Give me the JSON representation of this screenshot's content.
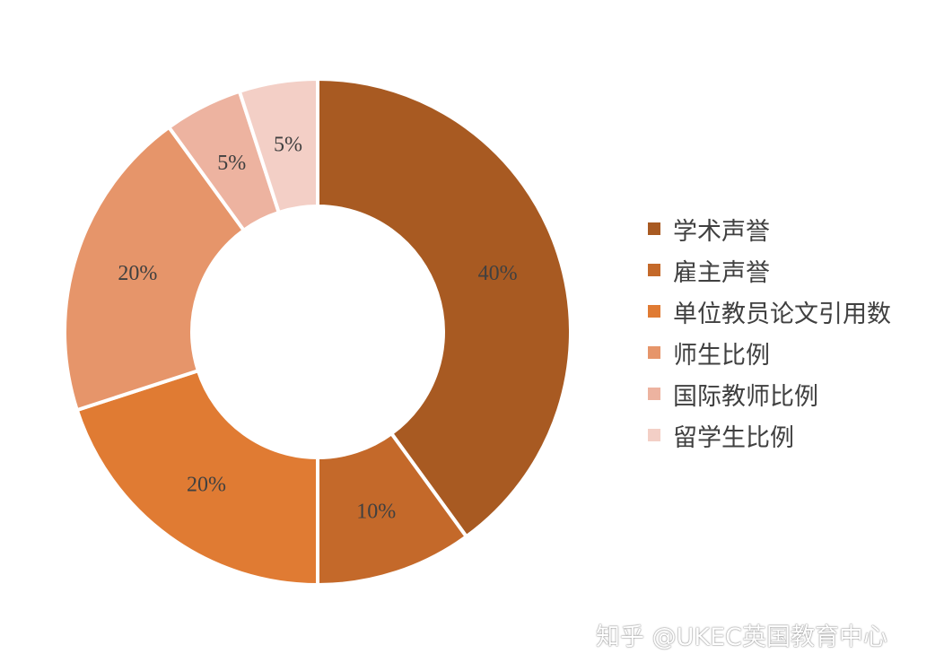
{
  "chart_data": {
    "type": "pie",
    "variant": "donut",
    "categories": [
      "学术声誉",
      "雇主声誉",
      "单位教员论文引用数",
      "师生比例",
      "国际教师比例",
      "留学生比例"
    ],
    "values": [
      40,
      10,
      20,
      20,
      5,
      5
    ],
    "labels": [
      "40%",
      "10%",
      "20%",
      "20%",
      "5%",
      "5%"
    ],
    "colors": [
      "#A85A22",
      "#C4692A",
      "#E07B33",
      "#E6956A",
      "#EDB3A0",
      "#F3CFC6"
    ],
    "legend_position": "right",
    "title": ""
  },
  "watermark": "知乎 @UKEC英国教育中心"
}
